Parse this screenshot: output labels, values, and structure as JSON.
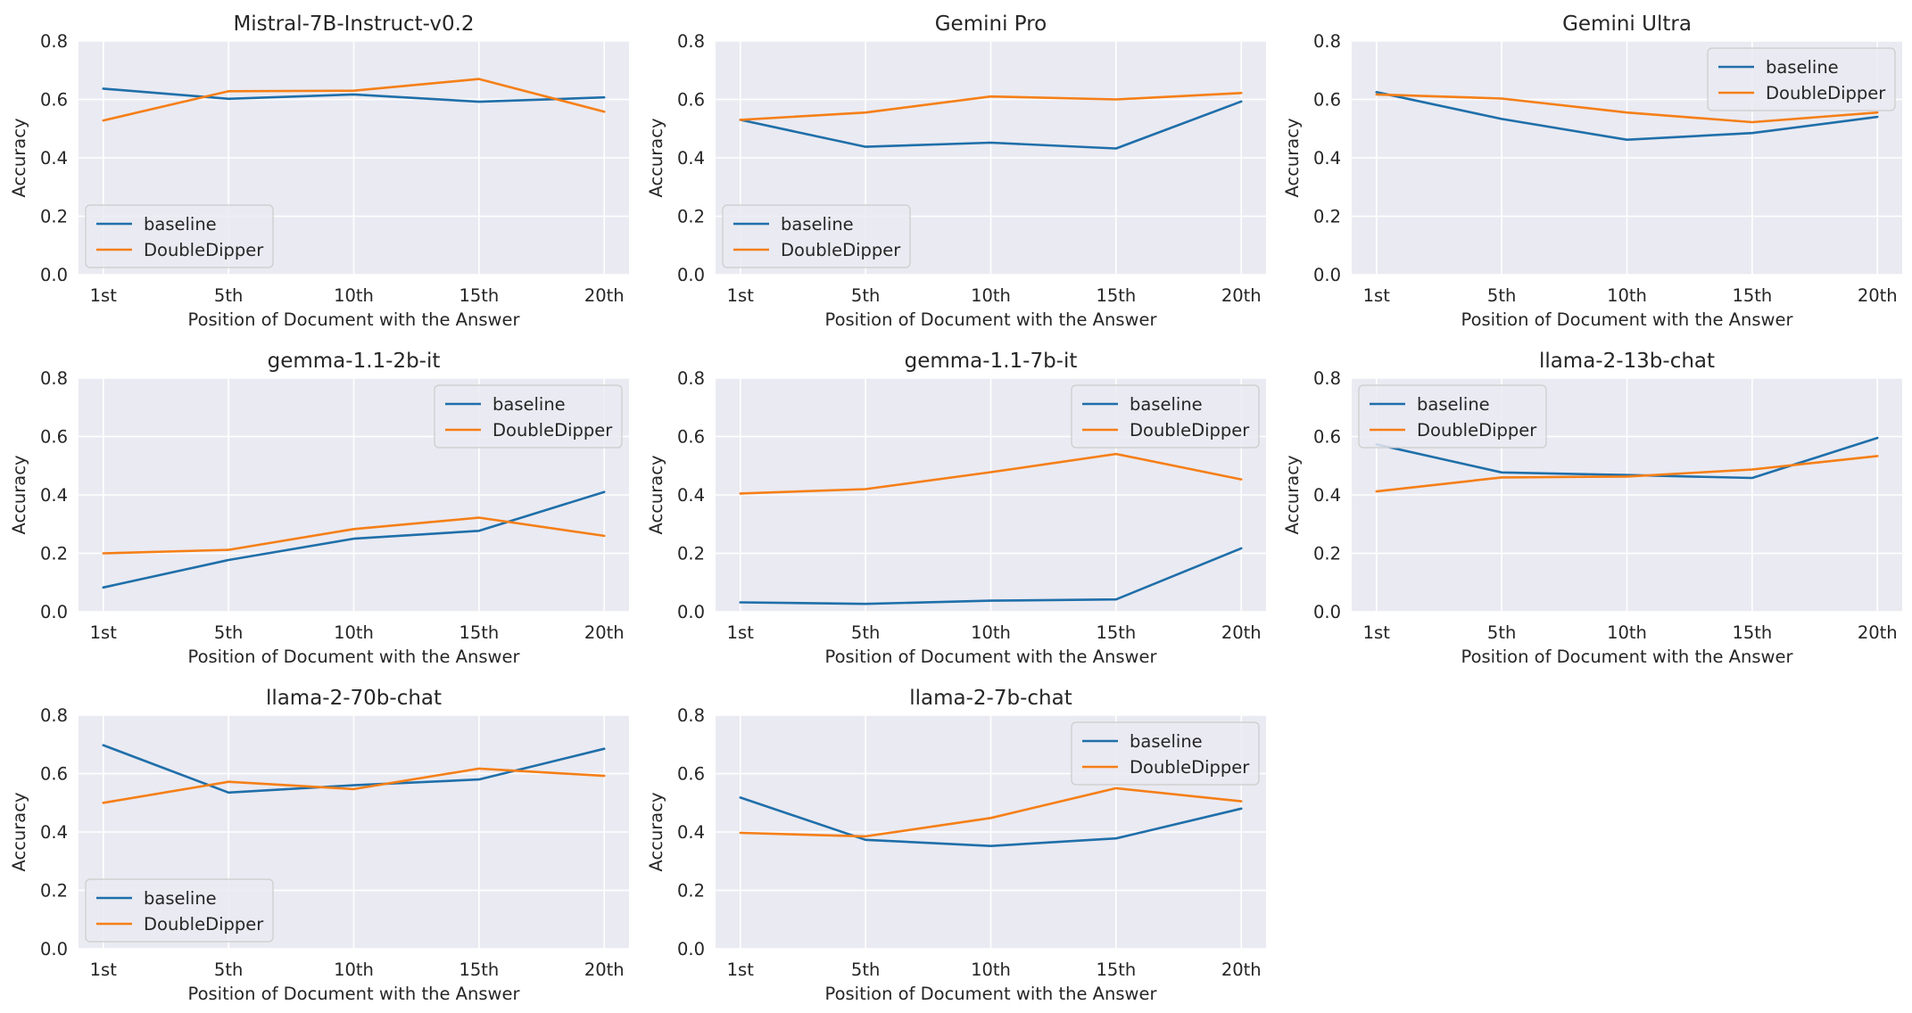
{
  "colors": {
    "baseline": "#1f6fa9",
    "doubledipper": "#f57f17",
    "panel_bg": "#eaeaf2",
    "grid": "#ffffff"
  },
  "chart_data": [
    {
      "type": "line",
      "title": "Mistral-7B-Instruct-v0.2",
      "categories": [
        "1st",
        "5th",
        "10th",
        "15th",
        "20th"
      ],
      "xlabel": "Position of Document with the Answer",
      "ylabel": "Accuracy",
      "ylim": [
        0,
        0.8
      ],
      "yticks": [
        "0.0",
        "0.2",
        "0.4",
        "0.6",
        "0.8"
      ],
      "legend": "lower-left",
      "series": [
        {
          "name": "baseline",
          "values": [
            0.637,
            0.602,
            0.617,
            0.592,
            0.607
          ]
        },
        {
          "name": "DoubleDipper",
          "values": [
            0.528,
            0.628,
            0.63,
            0.67,
            0.558
          ]
        }
      ]
    },
    {
      "type": "line",
      "title": "Gemini Pro",
      "categories": [
        "1st",
        "5th",
        "10th",
        "15th",
        "20th"
      ],
      "xlabel": "Position of Document with the Answer",
      "ylabel": "Accuracy",
      "ylim": [
        0,
        0.8
      ],
      "yticks": [
        "0.0",
        "0.2",
        "0.4",
        "0.6",
        "0.8"
      ],
      "legend": "lower-left",
      "series": [
        {
          "name": "baseline",
          "values": [
            0.53,
            0.438,
            0.452,
            0.432,
            0.593
          ]
        },
        {
          "name": "DoubleDipper",
          "values": [
            0.53,
            0.555,
            0.61,
            0.6,
            0.622
          ]
        }
      ]
    },
    {
      "type": "line",
      "title": "Gemini Ultra",
      "categories": [
        "1st",
        "5th",
        "10th",
        "15th",
        "20th"
      ],
      "xlabel": "Position of Document with the Answer",
      "ylabel": "Accuracy",
      "ylim": [
        0,
        0.8
      ],
      "yticks": [
        "0.0",
        "0.2",
        "0.4",
        "0.6",
        "0.8"
      ],
      "legend": "upper-right",
      "series": [
        {
          "name": "baseline",
          "values": [
            0.625,
            0.533,
            0.462,
            0.485,
            0.54
          ]
        },
        {
          "name": "DoubleDipper",
          "values": [
            0.617,
            0.603,
            0.555,
            0.522,
            0.555
          ]
        }
      ]
    },
    {
      "type": "line",
      "title": "gemma-1.1-2b-it",
      "categories": [
        "1st",
        "5th",
        "10th",
        "15th",
        "20th"
      ],
      "xlabel": "Position of Document with the Answer",
      "ylabel": "Accuracy",
      "ylim": [
        0,
        0.8
      ],
      "yticks": [
        "0.0",
        "0.2",
        "0.4",
        "0.6",
        "0.8"
      ],
      "legend": "upper-right",
      "series": [
        {
          "name": "baseline",
          "values": [
            0.083,
            0.177,
            0.25,
            0.277,
            0.41
          ]
        },
        {
          "name": "DoubleDipper",
          "values": [
            0.2,
            0.212,
            0.283,
            0.322,
            0.26
          ]
        }
      ]
    },
    {
      "type": "line",
      "title": "gemma-1.1-7b-it",
      "categories": [
        "1st",
        "5th",
        "10th",
        "15th",
        "20th"
      ],
      "xlabel": "Position of Document with the Answer",
      "ylabel": "Accuracy",
      "ylim": [
        0,
        0.8
      ],
      "yticks": [
        "0.0",
        "0.2",
        "0.4",
        "0.6",
        "0.8"
      ],
      "legend": "upper-right",
      "series": [
        {
          "name": "baseline",
          "values": [
            0.032,
            0.027,
            0.038,
            0.042,
            0.217
          ]
        },
        {
          "name": "DoubleDipper",
          "values": [
            0.405,
            0.42,
            0.478,
            0.54,
            0.453
          ]
        }
      ]
    },
    {
      "type": "line",
      "title": "llama-2-13b-chat",
      "categories": [
        "1st",
        "5th",
        "10th",
        "15th",
        "20th"
      ],
      "xlabel": "Position of Document with the Answer",
      "ylabel": "Accuracy",
      "ylim": [
        0,
        0.8
      ],
      "yticks": [
        "0.0",
        "0.2",
        "0.4",
        "0.6",
        "0.8"
      ],
      "legend": "upper-left",
      "series": [
        {
          "name": "baseline",
          "values": [
            0.573,
            0.477,
            0.468,
            0.458,
            0.595
          ]
        },
        {
          "name": "DoubleDipper",
          "values": [
            0.412,
            0.46,
            0.463,
            0.487,
            0.533
          ]
        }
      ]
    },
    {
      "type": "line",
      "title": "llama-2-70b-chat",
      "categories": [
        "1st",
        "5th",
        "10th",
        "15th",
        "20th"
      ],
      "xlabel": "Position of Document with the Answer",
      "ylabel": "Accuracy",
      "ylim": [
        0,
        0.8
      ],
      "yticks": [
        "0.0",
        "0.2",
        "0.4",
        "0.6",
        "0.8"
      ],
      "legend": "lower-left",
      "series": [
        {
          "name": "baseline",
          "values": [
            0.697,
            0.535,
            0.56,
            0.58,
            0.685
          ]
        },
        {
          "name": "DoubleDipper",
          "values": [
            0.5,
            0.572,
            0.547,
            0.617,
            0.592
          ]
        }
      ]
    },
    {
      "type": "line",
      "title": "llama-2-7b-chat",
      "categories": [
        "1st",
        "5th",
        "10th",
        "15th",
        "20th"
      ],
      "xlabel": "Position of Document with the Answer",
      "ylabel": "Accuracy",
      "ylim": [
        0,
        0.8
      ],
      "yticks": [
        "0.0",
        "0.2",
        "0.4",
        "0.6",
        "0.8"
      ],
      "legend": "upper-right",
      "series": [
        {
          "name": "baseline",
          "values": [
            0.518,
            0.373,
            0.352,
            0.378,
            0.48
          ]
        },
        {
          "name": "DoubleDipper",
          "values": [
            0.397,
            0.385,
            0.448,
            0.55,
            0.505
          ]
        }
      ]
    }
  ]
}
